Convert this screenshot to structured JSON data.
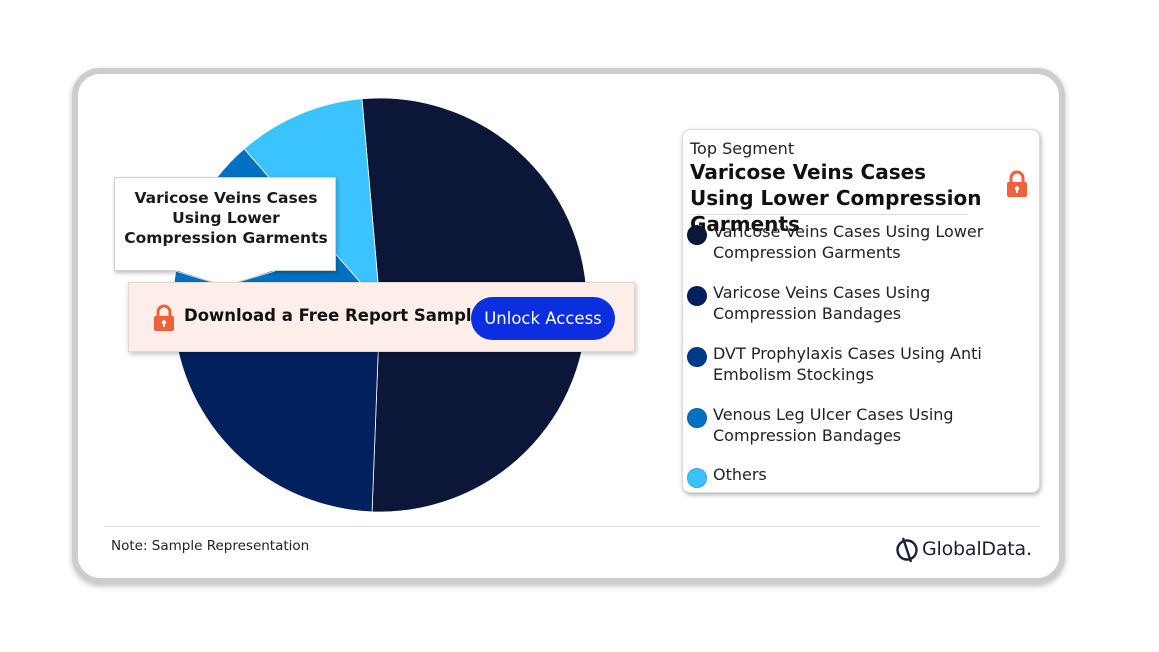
{
  "chart_data": {
    "type": "pie",
    "series": [
      {
        "name": "Varicose Veins Cases Using Lower Compression Garments",
        "value": 52,
        "color": "#0c1639"
      },
      {
        "name": "Varicose Veins Cases Using Compression Bandages",
        "value": 21,
        "color": "#00205e"
      },
      {
        "name": "DVT Prophylaxis Cases Using Anti Embolism Stockings",
        "value": 5,
        "color": "#003b8a"
      },
      {
        "name": "Venous Leg Ulcer Cases Using Compression Bandages",
        "value": 12,
        "color": "#0071c2"
      },
      {
        "name": "Others",
        "value": 10,
        "color": "#3ac3ff"
      }
    ],
    "start_angle_deg": -5
  },
  "callout": {
    "text": "Varicose Veins Cases Using Lower Compression Garments"
  },
  "download": {
    "text": "Download a Free Report Sample",
    "button": "Unlock Access",
    "button_color": "#0a2ee0"
  },
  "legend": {
    "top_label": "Top Segment",
    "top_title": "Varicose Veins Cases Using Lower Compression Garments",
    "lock_icon": "lock-icon"
  },
  "footer": {
    "note": "Note: Sample Representation",
    "logo": "GlobalData."
  },
  "colors": {
    "accent_lock": "#f0603a"
  }
}
